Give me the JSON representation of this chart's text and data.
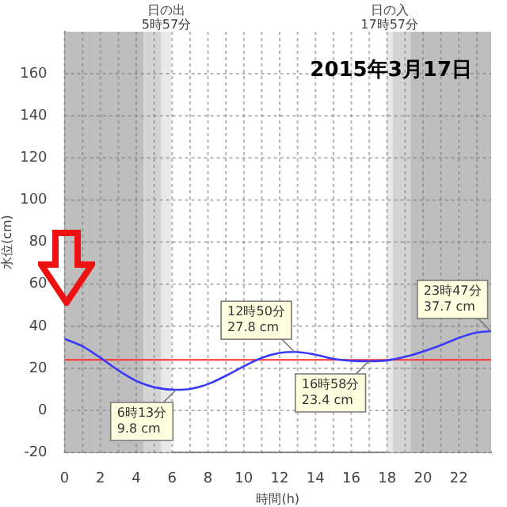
{
  "chart_data": {
    "type": "line",
    "title": "2015年3月17日",
    "xlabel": "時間(h)",
    "ylabel": "水位(cm)",
    "xlim": [
      0,
      23.8
    ],
    "ylim": [
      -20,
      180
    ],
    "xticks": [
      0,
      {
        "value": 1,
        "label": null
      },
      2,
      {
        "value": 3,
        "label": null
      },
      4,
      {
        "value": 5,
        "label": null
      },
      6,
      {
        "value": 7,
        "label": null
      },
      8,
      {
        "value": 9,
        "label": null
      },
      10,
      {
        "value": 11,
        "label": null
      },
      12,
      {
        "value": 13,
        "label": null
      },
      14,
      {
        "value": 15,
        "label": null
      },
      16,
      {
        "value": 17,
        "label": null
      },
      18,
      {
        "value": 19,
        "label": null
      },
      20,
      {
        "value": 21,
        "label": null
      },
      22,
      {
        "value": 23,
        "label": null
      }
    ],
    "yticks": [
      -20,
      0,
      20,
      40,
      60,
      80,
      100,
      120,
      140,
      160
    ],
    "grid": true,
    "legend": false,
    "marker": "none",
    "line_style": "solid",
    "series": [
      {
        "color": "#3a3aff",
        "x": [
          0,
          1,
          2,
          3,
          4,
          5,
          6.22,
          7,
          8,
          9,
          10,
          11,
          12,
          12.83,
          14,
          15,
          16,
          16.97,
          18,
          19,
          20,
          21,
          22,
          23,
          23.8
        ],
        "values": [
          34,
          30.5,
          25,
          19,
          14,
          11,
          9.8,
          10.2,
          12.5,
          16.5,
          21,
          25,
          27.3,
          27.8,
          26.5,
          24.5,
          23.6,
          23.4,
          23.8,
          25.5,
          28,
          31,
          34.5,
          37,
          37.7
        ]
      }
    ],
    "ref_lines": [
      {
        "axis": "y",
        "value": 24,
        "color": "#ff3030"
      }
    ],
    "bands": [
      {
        "axis": "x",
        "from": 0,
        "to": 4.4,
        "color": "#bebebe"
      },
      {
        "axis": "x",
        "from": 4.4,
        "to": 5.4,
        "color": "#d4d4d4"
      },
      {
        "axis": "x",
        "from": 5.4,
        "to": 5.95,
        "color": "#e9e9e9",
        "label": "日の出\n5時57分"
      },
      {
        "axis": "x",
        "from": 17.95,
        "to": 18.3,
        "color": "#e9e9e9",
        "label": "日の入\n17時57分"
      },
      {
        "axis": "x",
        "from": 18.3,
        "to": 19.3,
        "color": "#d4d4d4"
      },
      {
        "axis": "x",
        "from": 19.3,
        "to": 23.8,
        "color": "#bebebe"
      }
    ],
    "annotations": [
      {
        "text": "6時13分\n9.8 cm",
        "x": 6.22,
        "y": 9.8
      },
      {
        "text": "12時50分\n27.8 cm",
        "x": 12.83,
        "y": 27.8
      },
      {
        "text": "16時58分\n23.4 cm",
        "x": 16.97,
        "y": 23.4
      },
      {
        "text": "23時47分\n37.7 cm",
        "x": 23.78,
        "y": 37.7
      }
    ]
  }
}
